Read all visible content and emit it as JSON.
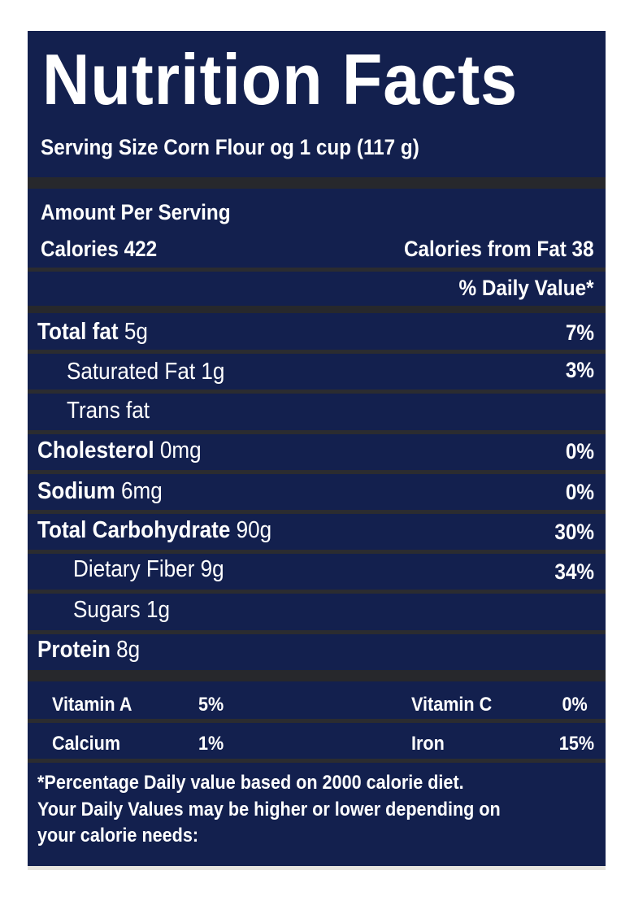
{
  "title": "Nutrition Facts",
  "serving_size": "Serving Size Corn Flour og 1 cup (117 g)",
  "amount_per_serving": "Amount Per Serving",
  "calories": "Calories 422",
  "calories_from_fat": "Calories from Fat 38",
  "daily_value_header": "% Daily Value*",
  "nutrients": [
    {
      "name": "Total fat",
      "amount": "5g",
      "dv": "7%"
    },
    {
      "name": "Saturated Fat",
      "amount": "1g",
      "dv": "3%"
    },
    {
      "name": "Trans fat",
      "amount": "",
      "dv": ""
    },
    {
      "name": "Cholesterol",
      "amount": "0mg",
      "dv": "0%"
    },
    {
      "name": "Sodium",
      "amount": "6mg",
      "dv": "0%"
    },
    {
      "name": "Total Carbohydrate",
      "amount": "90g",
      "dv": "30%"
    },
    {
      "name": "Dietary Fiber",
      "amount": "9g",
      "dv": "34%"
    },
    {
      "name": "Sugars",
      "amount": "1g",
      "dv": ""
    },
    {
      "name": "Protein",
      "amount": "8g",
      "dv": ""
    }
  ],
  "vitamins": [
    {
      "name": "Vitamin A",
      "value": "5%"
    },
    {
      "name": "Vitamin C",
      "value": "0%"
    },
    {
      "name": "Calcium",
      "value": "1%"
    },
    {
      "name": "Iron",
      "value": "15%"
    }
  ],
  "footnote": [
    "*Percentage Daily value based on 2000 calorie diet.",
    "Your Daily Values may be higher or lower depending on",
    "your calorie needs:"
  ],
  "colors": {
    "background": "#13204e",
    "divider": "#27282c",
    "text": "#ffffff"
  }
}
